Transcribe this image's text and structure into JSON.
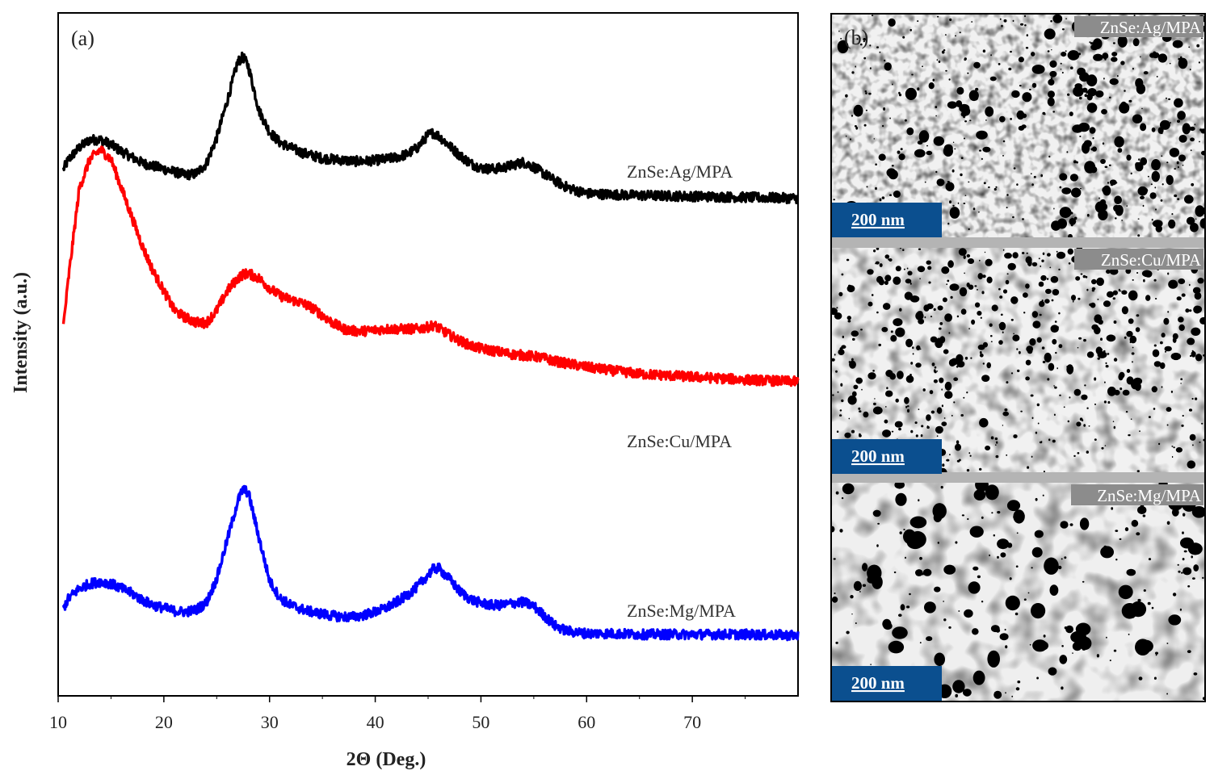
{
  "chart_data": {
    "type": "line",
    "panel_label": "(a)",
    "xlabel": "2Θ (Deg.)",
    "ylabel": "Intensity (a.u.)",
    "xlim": [
      10,
      80
    ],
    "ylim": [
      0,
      7
    ],
    "xticks": [
      10,
      20,
      30,
      40,
      50,
      60,
      70
    ],
    "x": [
      10.5,
      11,
      12,
      13,
      14,
      15,
      16,
      17,
      18,
      19,
      20,
      21,
      22,
      23,
      24,
      25,
      26,
      27,
      27.5,
      28,
      29,
      30,
      31,
      32,
      33,
      34,
      35,
      36,
      37,
      38,
      39,
      40,
      41,
      42,
      43,
      44,
      45,
      45.5,
      46,
      47,
      48,
      49,
      50,
      51,
      52,
      53,
      54,
      55,
      56,
      57,
      58,
      59,
      60,
      62,
      65,
      70,
      75,
      80
    ],
    "series": [
      {
        "name": "ZnSe:Ag/MPA",
        "color": "#000000",
        "values": [
          5.4,
          5.5,
          5.62,
          5.7,
          5.7,
          5.65,
          5.58,
          5.52,
          5.46,
          5.43,
          5.4,
          5.37,
          5.34,
          5.35,
          5.45,
          5.72,
          6.1,
          6.5,
          6.55,
          6.45,
          6.0,
          5.78,
          5.67,
          5.62,
          5.57,
          5.54,
          5.51,
          5.5,
          5.49,
          5.48,
          5.48,
          5.49,
          5.5,
          5.52,
          5.55,
          5.62,
          5.75,
          5.77,
          5.74,
          5.64,
          5.54,
          5.46,
          5.41,
          5.4,
          5.41,
          5.44,
          5.47,
          5.42,
          5.35,
          5.28,
          5.22,
          5.18,
          5.15,
          5.14,
          5.13,
          5.12,
          5.11,
          5.1
        ]
      },
      {
        "name": "ZnSe:Cu/MPA",
        "color": "#ff0000",
        "values": [
          3.8,
          4.3,
          5.2,
          5.5,
          5.6,
          5.5,
          5.2,
          4.9,
          4.6,
          4.35,
          4.15,
          3.95,
          3.88,
          3.83,
          3.82,
          3.95,
          4.15,
          4.28,
          4.32,
          4.33,
          4.28,
          4.18,
          4.1,
          4.06,
          4.03,
          3.98,
          3.9,
          3.82,
          3.76,
          3.74,
          3.74,
          3.75,
          3.76,
          3.76,
          3.76,
          3.76,
          3.78,
          3.8,
          3.77,
          3.7,
          3.64,
          3.59,
          3.56,
          3.54,
          3.52,
          3.5,
          3.49,
          3.48,
          3.46,
          3.43,
          3.41,
          3.39,
          3.37,
          3.34,
          3.3,
          3.27,
          3.24,
          3.22
        ]
      },
      {
        "name": "ZnSe:Mg/MPA",
        "color": "#0000ff",
        "values": [
          0.9,
          1.0,
          1.1,
          1.15,
          1.17,
          1.15,
          1.1,
          1.05,
          0.98,
          0.93,
          0.9,
          0.87,
          0.86,
          0.88,
          0.95,
          1.2,
          1.6,
          2.0,
          2.12,
          2.08,
          1.62,
          1.18,
          1.0,
          0.93,
          0.89,
          0.86,
          0.84,
          0.82,
          0.81,
          0.81,
          0.83,
          0.86,
          0.9,
          0.96,
          1.03,
          1.12,
          1.24,
          1.3,
          1.31,
          1.2,
          1.07,
          0.99,
          0.95,
          0.93,
          0.93,
          0.95,
          0.96,
          0.92,
          0.82,
          0.72,
          0.67,
          0.65,
          0.64,
          0.64,
          0.63,
          0.63,
          0.63,
          0.62
        ]
      }
    ]
  },
  "panel_b": {
    "panel_label": "(b)",
    "images": [
      {
        "label": "ZnSe:Ag/MPA",
        "scale_bar": "200 nm"
      },
      {
        "label": "ZnSe:Cu/MPA",
        "scale_bar": "200 nm"
      },
      {
        "label": "ZnSe:Mg/MPA",
        "scale_bar": "200 nm"
      }
    ]
  },
  "colors": {
    "scale_box": "#0b4f8f",
    "label_box": "#8c8c8c",
    "separator": "#b4b4b4"
  }
}
